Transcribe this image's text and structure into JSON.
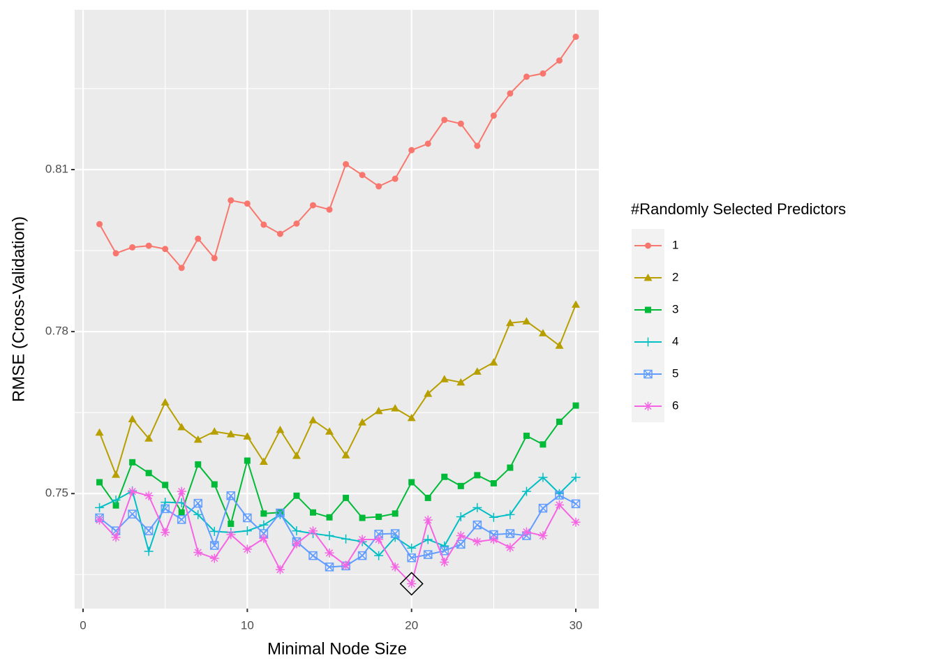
{
  "chart_data": {
    "type": "line",
    "x_label": "Minimal Node Size",
    "y_label": "RMSE (Cross-Validation)",
    "legend_title": "#Randomly Selected Predictors",
    "legend_position": "right",
    "grid": true,
    "x": [
      1,
      2,
      3,
      4,
      5,
      6,
      7,
      8,
      9,
      10,
      11,
      12,
      13,
      14,
      15,
      16,
      17,
      18,
      19,
      20,
      21,
      22,
      23,
      24,
      25,
      26,
      27,
      28,
      29,
      30
    ],
    "xlim": [
      -0.51,
      31.4
    ],
    "xticks": [
      0,
      10,
      20,
      30
    ],
    "xminor": [
      5,
      15,
      25
    ],
    "ylim": [
      0.7287,
      0.8396
    ],
    "yticks": [
      0.75,
      0.78,
      0.81
    ],
    "yminor": [
      0.735,
      0.765,
      0.795,
      0.825
    ],
    "highlight": {
      "series_index": 5,
      "point_index": 19
    },
    "series": [
      {
        "name": "1",
        "color": "#F8766D",
        "shape": "circle",
        "values": [
          0.7999,
          0.7945,
          0.7956,
          0.7959,
          0.7953,
          0.7918,
          0.7972,
          0.7936,
          0.8043,
          0.8037,
          0.7998,
          0.7981,
          0.8,
          0.8034,
          0.8026,
          0.811,
          0.809,
          0.8069,
          0.8083,
          0.8136,
          0.8148,
          0.8192,
          0.8185,
          0.8144,
          0.82,
          0.8241,
          0.8272,
          0.8278,
          0.8302,
          0.8346
        ]
      },
      {
        "name": "2",
        "color": "#B79F00",
        "shape": "triangle",
        "values": [
          0.7613,
          0.7535,
          0.7638,
          0.7602,
          0.7669,
          0.7623,
          0.76,
          0.7615,
          0.761,
          0.7606,
          0.7559,
          0.7618,
          0.757,
          0.7636,
          0.7615,
          0.7571,
          0.7632,
          0.7653,
          0.7658,
          0.764,
          0.7685,
          0.7712,
          0.7706,
          0.7726,
          0.7743,
          0.7816,
          0.7819,
          0.7797,
          0.7774,
          0.785
        ]
      },
      {
        "name": "3",
        "color": "#00BA38",
        "shape": "square",
        "values": [
          0.7521,
          0.7478,
          0.7558,
          0.7538,
          0.7516,
          0.7465,
          0.7554,
          0.7517,
          0.7444,
          0.7561,
          0.7463,
          0.7465,
          0.7496,
          0.7465,
          0.7456,
          0.7492,
          0.7455,
          0.7457,
          0.7463,
          0.7521,
          0.7492,
          0.7531,
          0.7514,
          0.7534,
          0.7519,
          0.7548,
          0.7607,
          0.7591,
          0.7633,
          0.7663
        ]
      },
      {
        "name": "4",
        "color": "#00BFC4",
        "shape": "plus",
        "values": [
          0.7474,
          0.7488,
          0.7505,
          0.7393,
          0.7484,
          0.7483,
          0.7461,
          0.743,
          0.7428,
          0.7431,
          0.7442,
          0.7461,
          0.7431,
          0.7426,
          0.7422,
          0.7416,
          0.7411,
          0.7385,
          0.7419,
          0.7399,
          0.7415,
          0.7403,
          0.7457,
          0.7474,
          0.7456,
          0.7461,
          0.7504,
          0.753,
          0.75,
          0.753
        ]
      },
      {
        "name": "5",
        "color": "#619CFF",
        "shape": "boxcross",
        "values": [
          0.7455,
          0.7431,
          0.7462,
          0.7431,
          0.7472,
          0.7452,
          0.7482,
          0.7404,
          0.7496,
          0.7455,
          0.7426,
          0.7464,
          0.7411,
          0.7385,
          0.7364,
          0.7366,
          0.7385,
          0.7425,
          0.7426,
          0.7381,
          0.7387,
          0.7394,
          0.7406,
          0.7442,
          0.7424,
          0.7426,
          0.7422,
          0.7473,
          0.7497,
          0.7481
        ]
      },
      {
        "name": "6",
        "color": "#F564E3",
        "shape": "asterisk",
        "values": [
          0.7451,
          0.7419,
          0.7504,
          0.7496,
          0.7428,
          0.7504,
          0.7391,
          0.738,
          0.7424,
          0.7397,
          0.7417,
          0.7359,
          0.7407,
          0.7431,
          0.739,
          0.7367,
          0.7415,
          0.7415,
          0.7364,
          0.7333,
          0.7451,
          0.7373,
          0.7422,
          0.7411,
          0.7415,
          0.74,
          0.7429,
          0.7422,
          0.7479,
          0.7447
        ]
      }
    ]
  }
}
